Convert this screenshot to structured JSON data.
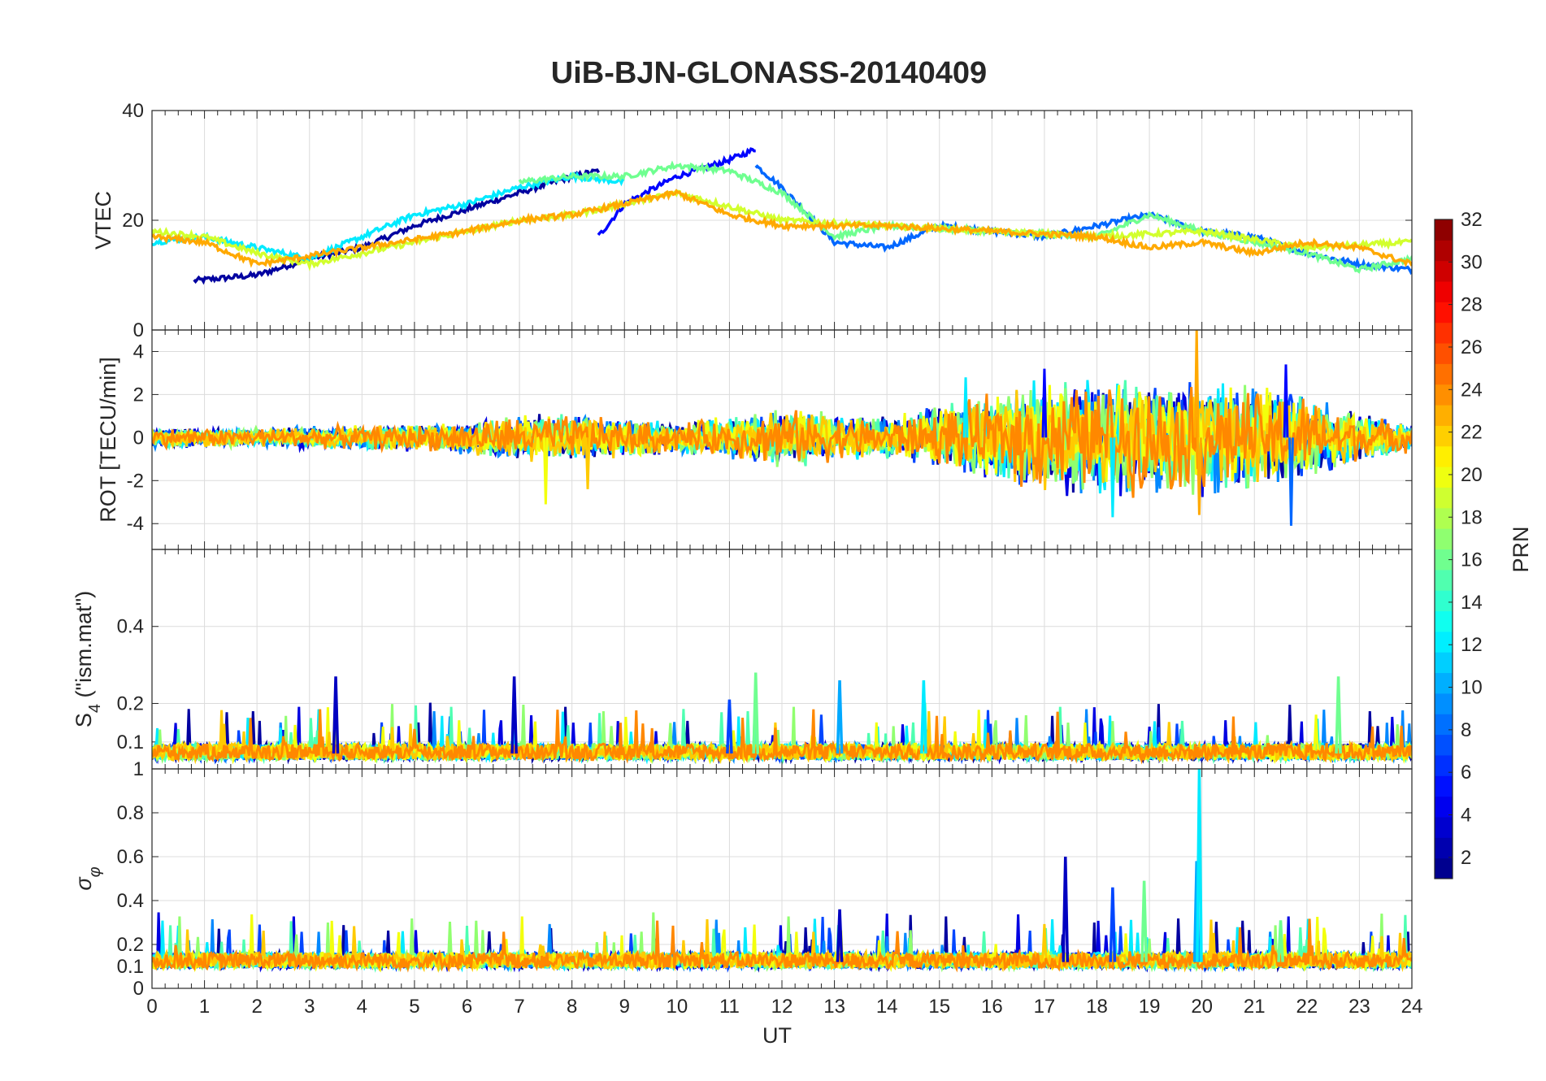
{
  "figure": {
    "title": "UiB-BJN-GLONASS-20140409",
    "xlabel": "UT",
    "x_ticks": [
      "0",
      "1",
      "2",
      "3",
      "4",
      "5",
      "6",
      "7",
      "8",
      "9",
      "10",
      "11",
      "12",
      "13",
      "14",
      "15",
      "16",
      "17",
      "18",
      "19",
      "20",
      "21",
      "22",
      "23",
      "24"
    ]
  },
  "colorbar": {
    "label": "PRN",
    "ticks": [
      "2",
      "4",
      "6",
      "8",
      "10",
      "12",
      "14",
      "16",
      "18",
      "20",
      "22",
      "24",
      "26",
      "28",
      "30",
      "32"
    ],
    "range": [
      1,
      32
    ],
    "colormap": "jet"
  },
  "chart_data": [
    {
      "type": "line",
      "name": "vtec",
      "ylabel": "VTEC",
      "xlim": [
        0,
        24
      ],
      "ylim": [
        0,
        40
      ],
      "y_ticks": [
        "0",
        "20",
        "40"
      ],
      "series": [
        {
          "name": "PRN 2",
          "x": [
            0.8,
            2,
            3,
            4,
            5,
            6,
            7,
            8,
            8.5
          ],
          "y": [
            9,
            10,
            13,
            15,
            19,
            22,
            25,
            28,
            29
          ]
        },
        {
          "name": "PRN 5",
          "x": [
            8.5,
            9,
            10,
            11,
            11.5
          ],
          "y": [
            17,
            23,
            28,
            31,
            33
          ]
        },
        {
          "name": "PRN 8",
          "x": [
            11.5,
            12,
            13,
            14,
            15,
            16,
            17,
            18,
            19,
            20,
            21,
            22,
            23,
            24
          ],
          "y": [
            30,
            26,
            16,
            15,
            19,
            18,
            17,
            19,
            21,
            18,
            17,
            14,
            12,
            11
          ]
        },
        {
          "name": "PRN 12",
          "x": [
            0,
            1,
            2,
            3,
            4,
            5,
            6,
            7,
            8,
            9
          ],
          "y": [
            16,
            17,
            15,
            13,
            17,
            21,
            23,
            26,
            28,
            27
          ]
        },
        {
          "name": "PRN 16",
          "x": [
            7,
            8,
            9,
            10,
            11,
            12,
            13,
            14,
            16,
            18,
            19,
            20,
            21,
            22,
            23,
            24
          ],
          "y": [
            27,
            28,
            28,
            30,
            29,
            25,
            17,
            19,
            18,
            17,
            21,
            18,
            16,
            14,
            11,
            13
          ]
        },
        {
          "name": "PRN 19",
          "x": [
            0,
            1,
            2,
            3,
            4,
            5,
            6,
            7,
            8,
            9,
            10,
            12,
            14,
            16,
            18,
            20,
            22,
            24
          ],
          "y": [
            18,
            17,
            14,
            12,
            14,
            16,
            18,
            20,
            21,
            23,
            25,
            20,
            19,
            18,
            17,
            18,
            15,
            16
          ]
        },
        {
          "name": "PRN 23",
          "x": [
            0,
            1,
            2,
            4,
            6,
            7,
            8,
            9,
            10,
            11,
            12,
            14,
            16,
            18,
            19,
            20,
            21,
            22,
            23,
            24
          ],
          "y": [
            17,
            16,
            12,
            15,
            18,
            20,
            21,
            23,
            25,
            21,
            19,
            19,
            18,
            17,
            15,
            16,
            14,
            16,
            15,
            12
          ]
        }
      ]
    },
    {
      "type": "line",
      "name": "rot",
      "ylabel": "ROT [TECU/min]",
      "xlim": [
        0,
        24
      ],
      "ylim": [
        -5.2,
        5
      ],
      "y_ticks": [
        "-4",
        "-2",
        "0",
        "2",
        "4"
      ],
      "noise_envelope": {
        "x": [
          0,
          2,
          4,
          6,
          7,
          8,
          10,
          11,
          12,
          13,
          14,
          15,
          16,
          17,
          18,
          19,
          20,
          21,
          22,
          23,
          24
        ],
        "amplitude": [
          0.5,
          0.5,
          0.6,
          0.8,
          1.2,
          1.2,
          0.8,
          1.0,
          1.5,
          1.2,
          1.0,
          1.5,
          2.2,
          2.8,
          3.0,
          2.8,
          3.0,
          2.5,
          2.2,
          1.2,
          0.7
        ]
      },
      "spikes": [
        {
          "x": 7.5,
          "y": -3.1
        },
        {
          "x": 8.3,
          "y": -2.4
        },
        {
          "x": 15.5,
          "y": 2.8
        },
        {
          "x": 17.0,
          "y": 3.2
        },
        {
          "x": 18.3,
          "y": -3.7
        },
        {
          "x": 19.9,
          "y": 5.0
        },
        {
          "x": 19.95,
          "y": -3.6
        },
        {
          "x": 21.6,
          "y": 3.4
        },
        {
          "x": 21.7,
          "y": -4.1
        }
      ]
    },
    {
      "type": "line",
      "name": "s4",
      "ylabel": "S4 (\"ism.mat\")",
      "ylabel_parts": {
        "s": "S",
        "sub": "4",
        "rest": " (\"ism.mat\")"
      },
      "xlim": [
        0,
        24
      ],
      "ylim": [
        0.03,
        0.6
      ],
      "y_ticks": [
        "0.1",
        "0.2",
        "0.4"
      ],
      "baseline": 0.07,
      "spikes": [
        {
          "x": 3.5,
          "y": 0.27
        },
        {
          "x": 6.9,
          "y": 0.27
        },
        {
          "x": 11.0,
          "y": 0.21
        },
        {
          "x": 11.5,
          "y": 0.28
        },
        {
          "x": 13.1,
          "y": 0.26
        },
        {
          "x": 14.7,
          "y": 0.26
        },
        {
          "x": 22.6,
          "y": 0.27
        }
      ]
    },
    {
      "type": "line",
      "name": "sigma_phi",
      "ylabel": "σφ",
      "ylabel_parts": {
        "s": "σ",
        "sub": "φ"
      },
      "xlim": [
        0,
        24
      ],
      "ylim": [
        0,
        1.0
      ],
      "y_ticks": [
        "0",
        "0.1",
        "0.2",
        "0.4",
        "0.6",
        "0.8",
        "1"
      ],
      "baseline": 0.12,
      "spikes": [
        {
          "x": 13.1,
          "y": 0.36
        },
        {
          "x": 17.4,
          "y": 0.6
        },
        {
          "x": 18.3,
          "y": 0.46
        },
        {
          "x": 18.9,
          "y": 0.49
        },
        {
          "x": 19.9,
          "y": 0.58
        },
        {
          "x": 19.95,
          "y": 1.0
        },
        {
          "x": 21.5,
          "y": 0.31
        }
      ]
    }
  ]
}
